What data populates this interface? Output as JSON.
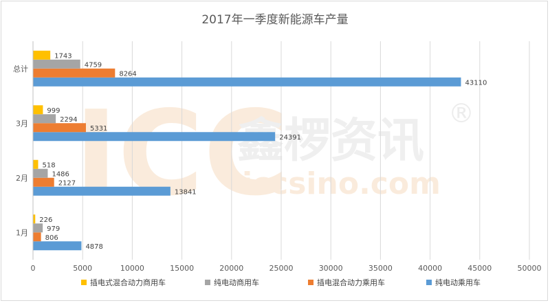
{
  "chart_data": {
    "type": "bar",
    "orientation": "horizontal",
    "title": "2017年一季度新能源车产量",
    "categories": [
      "1月",
      "2月",
      "3月",
      "总计"
    ],
    "series": [
      {
        "name": "纯电动乘用车",
        "color": "#5b9bd5",
        "values": [
          4878,
          13841,
          24391,
          43110
        ]
      },
      {
        "name": "插电混合动力乘用车",
        "color": "#ed7d31",
        "values": [
          806,
          2127,
          5331,
          8264
        ]
      },
      {
        "name": "纯电动商用车",
        "color": "#a5a5a5",
        "values": [
          979,
          1486,
          2294,
          4759
        ]
      },
      {
        "name": "插电式混合动力商用车",
        "color": "#ffc000",
        "values": [
          226,
          518,
          999,
          1743
        ]
      }
    ],
    "xlim": [
      0,
      50000
    ],
    "xticks": [
      0,
      5000,
      10000,
      15000,
      20000,
      25000,
      30000,
      35000,
      40000,
      45000,
      50000
    ],
    "grid": true,
    "legend_position": "bottom",
    "legend_order": [
      3,
      2,
      1,
      0
    ]
  },
  "watermark": {
    "logo_text": "ICC",
    "brand": "鑫椤资讯",
    "registered": "®",
    "url": "iccsino.com"
  }
}
